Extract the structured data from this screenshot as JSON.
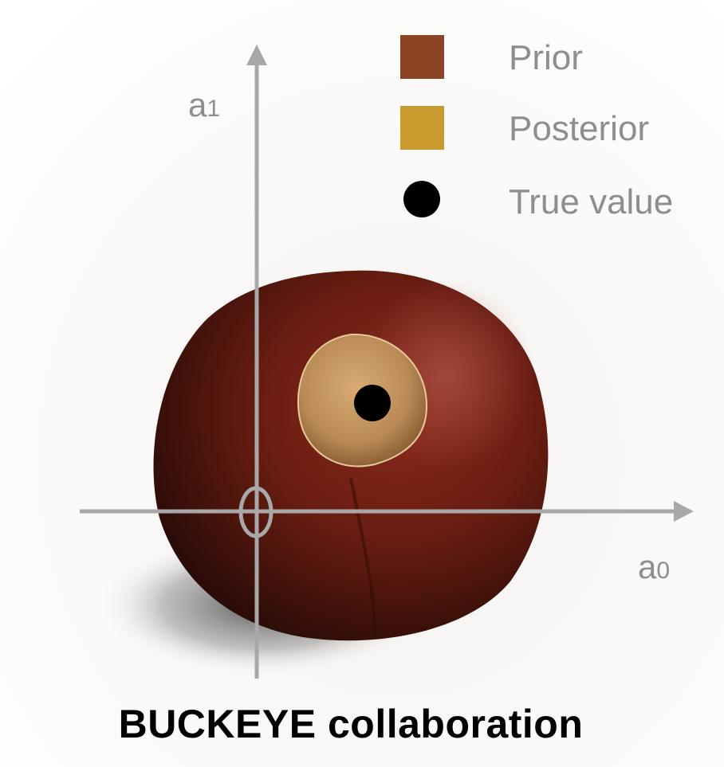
{
  "legend": {
    "items": [
      {
        "label": "Prior",
        "symbol": "square",
        "color": "#8B4323"
      },
      {
        "label": "Posterior",
        "symbol": "square",
        "color": "#C99A2E"
      },
      {
        "label": "True value",
        "symbol": "dot",
        "color": "#000000"
      }
    ]
  },
  "axes": {
    "y_label": {
      "base": "a",
      "subscript": "1"
    },
    "x_label": {
      "base": "a",
      "subscript": "0"
    },
    "origin_label": "0",
    "color": "#A8A8A8"
  },
  "colors": {
    "chestnut": "#5E1A10",
    "posterior_scar": "#B98A55",
    "true_value": "#000000",
    "legend_text": "#8E8E8E"
  },
  "footer": {
    "title": "BUCKEYE collaboration"
  }
}
